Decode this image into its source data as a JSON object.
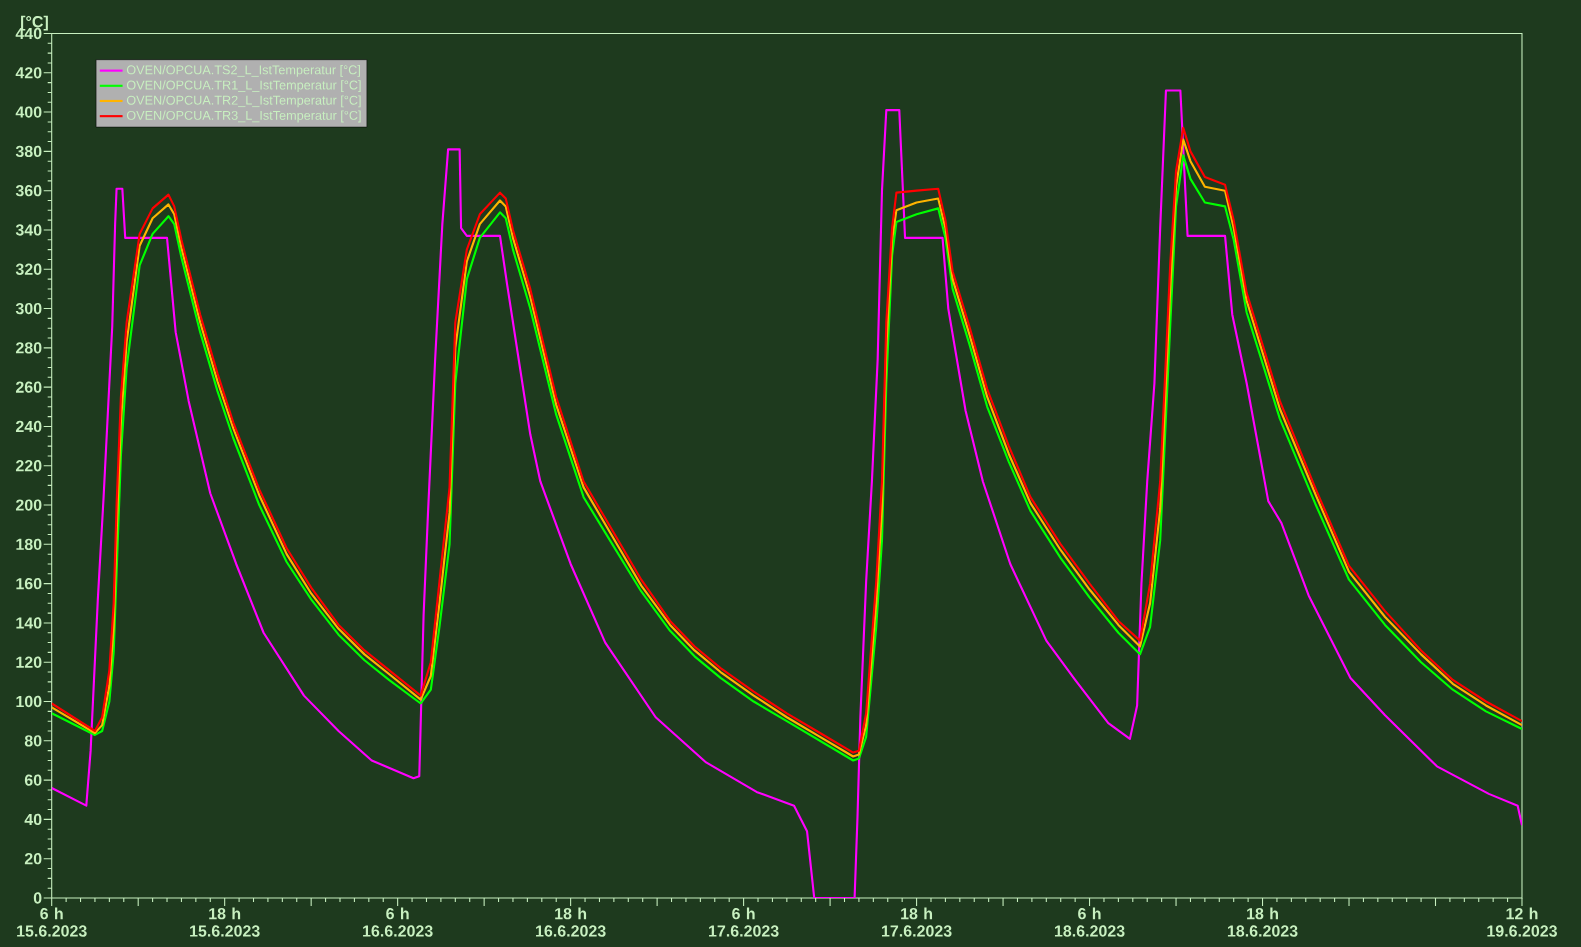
{
  "chart_data": {
    "type": "line",
    "ylabel": "[°C]",
    "legend": "top left",
    "xlim": [
      "2023-06-15T06:00",
      "2023-06-19T12:00"
    ],
    "ylim": [
      0,
      440
    ],
    "xticks": [
      {
        "value": "2023-06-15T06:00",
        "label": "6 h 15.6.2023"
      },
      {
        "value": "2023-06-15T12:00",
        "label": null
      },
      {
        "value": "2023-06-15T18:00",
        "label": "18 h 15.6.2023"
      },
      {
        "value": "2023-06-16T00:00",
        "label": null
      },
      {
        "value": "2023-06-16T06:00",
        "label": "6 h 16.6.2023"
      },
      {
        "value": "2023-06-16T12:00",
        "label": null
      },
      {
        "value": "2023-06-16T18:00",
        "label": "18 h 16.6.2023"
      },
      {
        "value": "2023-06-17T00:00",
        "label": null
      },
      {
        "value": "2023-06-17T06:00",
        "label": "6 h 17.6.2023"
      },
      {
        "value": "2023-06-17T12:00",
        "label": null
      },
      {
        "value": "2023-06-17T18:00",
        "label": "18 h 17.6.2023"
      },
      {
        "value": "2023-06-18T00:00",
        "label": null
      },
      {
        "value": "2023-06-18T06:00",
        "label": "6 h 18.6.2023"
      },
      {
        "value": "2023-06-18T12:00",
        "label": null
      },
      {
        "value": "2023-06-18T18:00",
        "label": "18 h 18.6.2023"
      },
      {
        "value": "2023-06-19T00:00",
        "label": null
      },
      {
        "value": "2023-06-19T06:00",
        "label": null
      },
      {
        "value": "2023-06-19T12:00",
        "label": "12 h 19.6.2023"
      }
    ],
    "yticks": [
      0,
      20,
      40,
      60,
      80,
      100,
      120,
      140,
      160,
      180,
      200,
      220,
      240,
      260,
      280,
      300,
      320,
      340,
      360,
      380,
      400,
      420,
      440
    ],
    "x": [
      "2023-06-15T06:00",
      "2023-06-15T09:00",
      "2023-06-15T09:30",
      "2023-06-15T10:00",
      "2023-06-15T10:18",
      "2023-06-15T10:30",
      "2023-06-15T10:48",
      "2023-06-15T11:12",
      "2023-06-15T12:06",
      "2023-06-15T13:00",
      "2023-06-15T14:06",
      "2023-06-15T14:30",
      "2023-06-15T15:00",
      "2023-06-15T16:18",
      "2023-06-15T17:30",
      "2023-06-15T18:36",
      "2023-06-15T20:24",
      "2023-06-15T22:18",
      "2023-06-16T00:00",
      "2023-06-16T01:54",
      "2023-06-16T03:42",
      "2023-06-16T05:24",
      "2023-06-16T07:36",
      "2023-06-16T08:18",
      "2023-06-16T08:54",
      "2023-06-16T09:36",
      "2023-06-16T10:00",
      "2023-06-16T10:48",
      "2023-06-16T11:42",
      "2023-06-16T13:06",
      "2023-06-16T13:30",
      "2023-06-16T14:00",
      "2023-06-16T15:12",
      "2023-06-16T17:00",
      "2023-06-16T18:54",
      "2023-06-16T20:54",
      "2023-06-16T22:54",
      "2023-06-17T00:54",
      "2023-06-17T02:36",
      "2023-06-17T04:24",
      "2023-06-17T06:42",
      "2023-06-17T09:00",
      "2023-06-17T11:18",
      "2023-06-17T13:36",
      "2023-06-17T14:00",
      "2023-06-17T14:30",
      "2023-06-17T15:12",
      "2023-06-17T15:36",
      "2023-06-17T15:54",
      "2023-06-17T16:18",
      "2023-06-17T16:36",
      "2023-06-17T18:00",
      "2023-06-17T19:30",
      "2023-06-17T20:00",
      "2023-06-17T20:30",
      "2023-06-17T21:42",
      "2023-06-17T22:54",
      "2023-06-18T00:24",
      "2023-06-18T01:54",
      "2023-06-18T04:00",
      "2023-06-18T06:00",
      "2023-06-18T08:00",
      "2023-06-18T09:30",
      "2023-06-18T10:12",
      "2023-06-18T10:54",
      "2023-06-18T11:36",
      "2023-06-18T12:00",
      "2023-06-18T12:30",
      "2023-06-18T13:00",
      "2023-06-18T14:00",
      "2023-06-18T15:24",
      "2023-06-18T16:00",
      "2023-06-18T16:54",
      "2023-06-18T19:12",
      "2023-06-18T21:42",
      "2023-06-19T00:00",
      "2023-06-19T02:30",
      "2023-06-19T05:00",
      "2023-06-19T07:12",
      "2023-06-19T09:30",
      "2023-06-19T12:00"
    ],
    "series": [
      {
        "name": "OVEN/OPCUA.TS2_L_IstTemperatur [°C]",
        "color": "#ff00ff",
        "x": [
          "2023-06-15T06:00",
          "2023-06-15T08:24",
          "2023-06-15T08:42",
          "2023-06-15T09:12",
          "2023-06-15T09:36",
          "2023-06-15T10:12",
          "2023-06-15T10:24",
          "2023-06-15T10:30",
          "2023-06-15T10:54",
          "2023-06-15T11:06",
          "2023-06-15T14:00",
          "2023-06-15T14:36",
          "2023-06-15T15:30",
          "2023-06-15T17:00",
          "2023-06-15T18:48",
          "2023-06-15T20:42",
          "2023-06-15T23:30",
          "2023-06-16T01:54",
          "2023-06-16T04:12",
          "2023-06-16T07:06",
          "2023-06-16T07:30",
          "2023-06-16T07:48",
          "2023-06-16T08:06",
          "2023-06-16T08:36",
          "2023-06-16T09:06",
          "2023-06-16T09:30",
          "2023-06-16T10:18",
          "2023-06-16T10:24",
          "2023-06-16T10:48",
          "2023-06-16T13:06",
          "2023-06-16T13:36",
          "2023-06-16T15:12",
          "2023-06-16T15:54",
          "2023-06-16T18:00",
          "2023-06-16T20:24",
          "2023-06-16T23:54",
          "2023-06-17T03:24",
          "2023-06-17T06:54",
          "2023-06-17T09:30",
          "2023-06-17T10:24",
          "2023-06-17T10:54",
          "2023-06-17T13:42",
          "2023-06-17T13:54",
          "2023-06-17T14:06",
          "2023-06-17T14:30",
          "2023-06-17T14:54",
          "2023-06-17T15:18",
          "2023-06-17T15:36",
          "2023-06-17T15:54",
          "2023-06-17T16:48",
          "2023-06-17T17:12",
          "2023-06-17T19:48",
          "2023-06-17T20:12",
          "2023-06-17T21:24",
          "2023-06-17T22:36",
          "2023-06-18T00:30",
          "2023-06-18T03:00",
          "2023-06-18T05:00",
          "2023-06-18T07:18",
          "2023-06-18T08:48",
          "2023-06-18T09:18",
          "2023-06-18T09:36",
          "2023-06-18T10:00",
          "2023-06-18T10:30",
          "2023-06-18T10:54",
          "2023-06-18T11:18",
          "2023-06-18T12:18",
          "2023-06-18T12:48",
          "2023-06-18T15:24",
          "2023-06-18T15:54",
          "2023-06-18T16:54",
          "2023-06-18T18:24",
          "2023-06-18T19:18",
          "2023-06-18T21:12",
          "2023-06-19T00:06",
          "2023-06-19T02:30",
          "2023-06-19T06:06",
          "2023-06-19T09:42",
          "2023-06-19T11:42",
          "2023-06-19T12:00"
        ],
        "values": [
          56,
          47,
          75,
          152,
          204,
          291,
          343,
          361,
          361,
          336,
          336,
          288,
          253,
          206,
          170,
          135,
          103,
          85,
          70,
          61,
          62,
          144,
          195,
          274,
          343,
          381,
          381,
          341,
          337,
          337,
          312,
          236,
          212,
          170,
          130,
          92,
          69,
          54,
          47,
          34,
          0,
          0,
          41,
          92,
          161,
          212,
          274,
          360,
          401,
          401,
          336,
          336,
          300,
          248,
          212,
          170,
          131,
          111,
          89,
          81,
          98,
          160,
          212,
          262,
          341,
          411,
          411,
          337,
          337,
          297,
          262,
          202,
          191,
          154,
          112,
          93,
          67,
          53,
          47,
          37
        ]
      },
      {
        "name": "OVEN/OPCUA.TR1_L_IstTemperatur [°C]",
        "color": "#00ff00",
        "values": [
          94,
          83,
          85,
          100,
          125,
          165,
          225,
          270,
          322,
          338,
          347,
          343,
          326,
          288,
          258,
          234,
          200,
          171,
          152,
          134,
          121,
          111,
          99,
          106,
          138,
          180,
          262,
          315,
          336,
          349,
          346,
          330,
          300,
          246,
          204,
          180,
          156,
          136,
          123,
          112,
          100,
          90,
          80,
          70,
          71,
          82,
          138,
          182,
          262,
          327,
          344,
          348,
          351,
          336,
          310,
          281,
          250,
          222,
          197,
          173,
          153,
          135,
          124,
          138,
          182,
          292,
          352,
          378,
          366,
          354,
          352,
          335,
          298,
          244,
          200,
          162,
          139,
          120,
          106,
          95,
          86
        ]
      },
      {
        "name": "OVEN/OPCUA.TR2_L_IstTemperatur [°C]",
        "color": "#ffb400",
        "values": [
          97,
          84,
          88,
          108,
          138,
          185,
          242,
          283,
          332,
          346,
          353,
          348,
          331,
          293,
          263,
          239,
          205,
          175,
          155,
          137,
          124,
          114,
          101,
          113,
          150,
          196,
          280,
          324,
          343,
          355,
          352,
          336,
          306,
          251,
          209,
          184,
          159,
          139,
          126,
          115,
          103,
          92,
          82,
          72,
          73,
          88,
          150,
          198,
          280,
          335,
          350,
          354,
          356,
          341,
          315,
          286,
          255,
          226,
          201,
          177,
          157,
          139,
          128,
          150,
          198,
          310,
          362,
          386,
          375,
          362,
          360,
          341,
          304,
          249,
          205,
          166,
          143,
          124,
          109,
          98,
          88
        ]
      },
      {
        "name": "OVEN/OPCUA.TR3_L_IstTemperatur [°C]",
        "color": "#ff0000",
        "values": [
          99,
          85,
          92,
          116,
          150,
          200,
          255,
          293,
          338,
          351,
          358,
          352,
          335,
          297,
          267,
          242,
          208,
          178,
          158,
          139,
          126,
          116,
          103,
          120,
          161,
          209,
          293,
          330,
          348,
          359,
          356,
          340,
          310,
          255,
          212,
          187,
          162,
          141,
          128,
          117,
          105,
          94,
          84,
          74,
          75,
          94,
          161,
          212,
          293,
          341,
          359,
          360,
          361,
          345,
          319,
          290,
          259,
          230,
          204,
          180,
          160,
          141,
          131,
          160,
          212,
          323,
          370,
          392,
          380,
          367,
          363,
          345,
          308,
          253,
          208,
          169,
          146,
          126,
          111,
          100,
          90
        ]
      }
    ]
  }
}
